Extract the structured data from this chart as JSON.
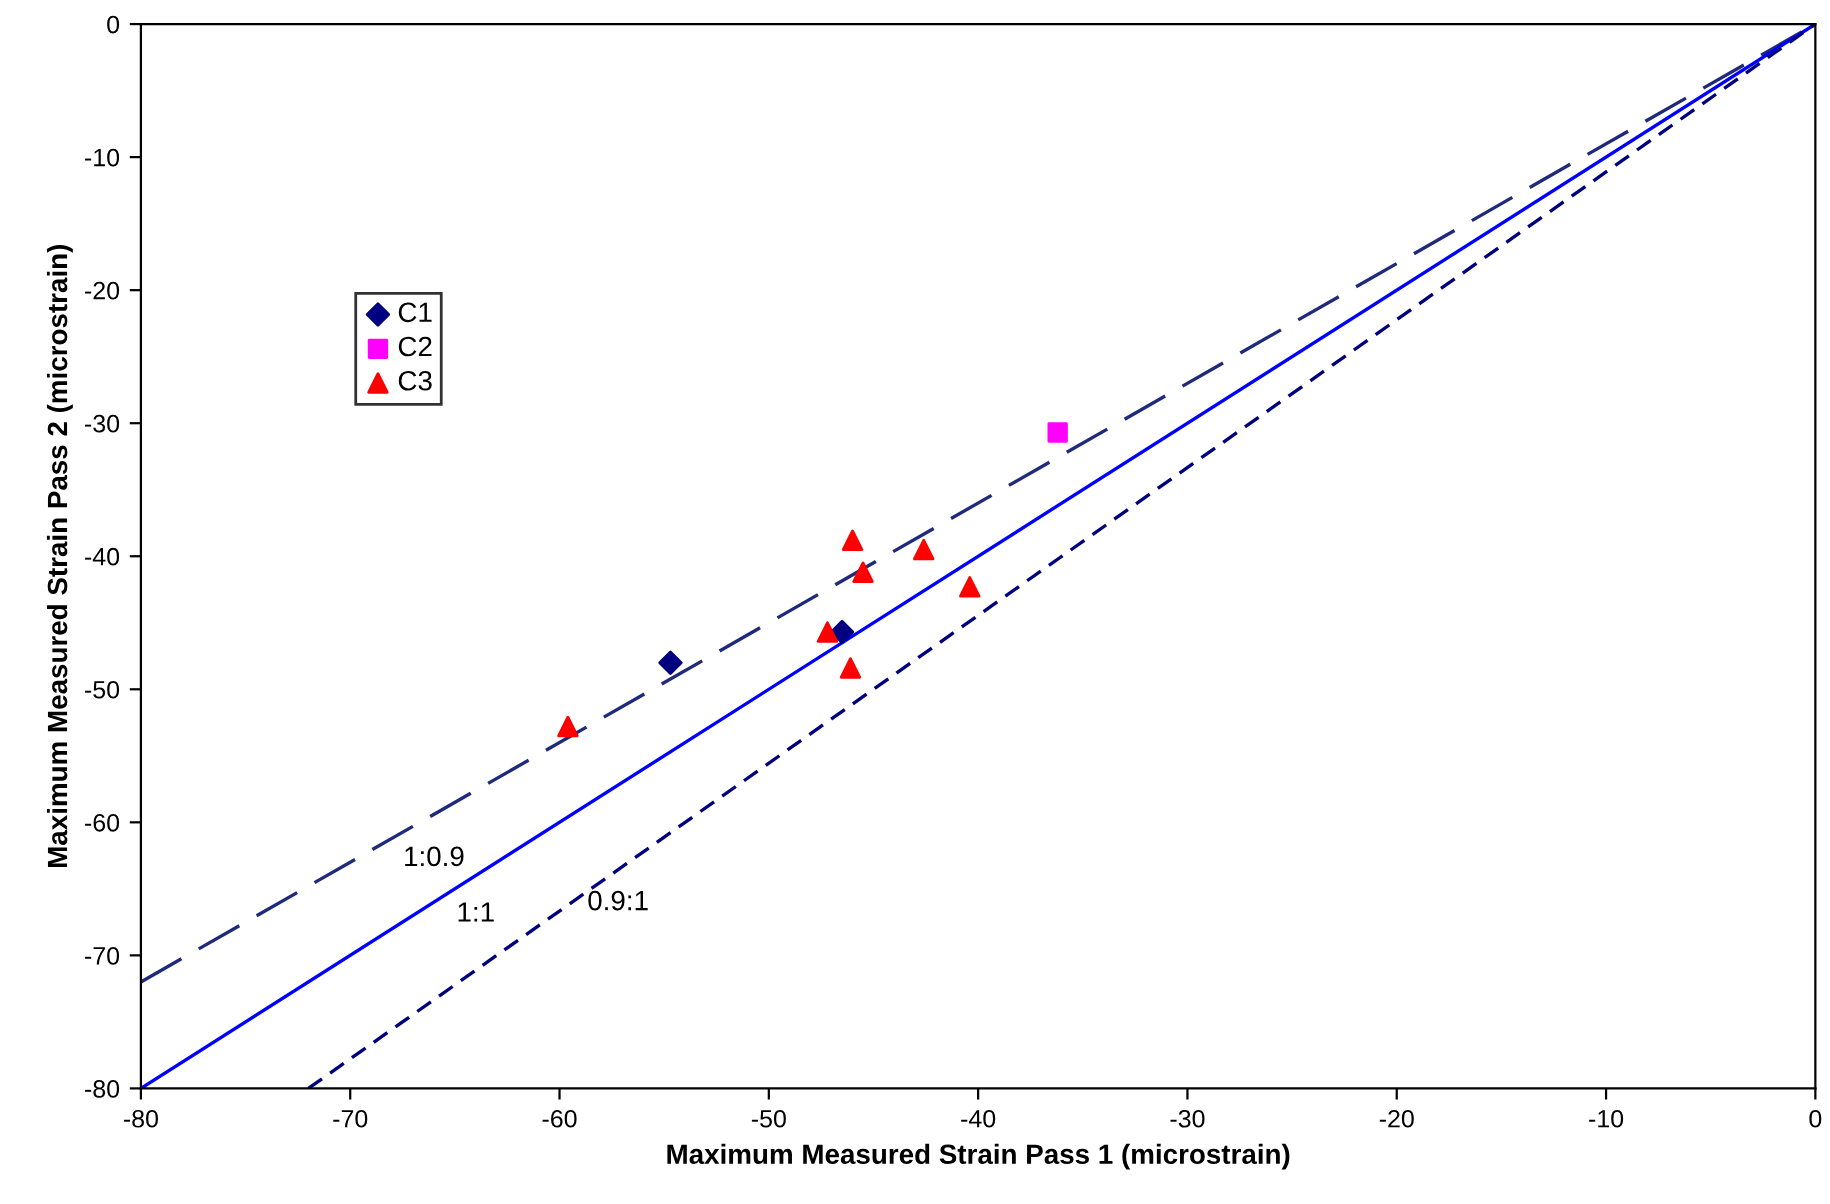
{
  "chart_data": {
    "type": "scatter",
    "xlabel": "Maximum Measured Strain Pass 1 (microstrain)",
    "ylabel": "Maximum Measured Strain Pass 2 (microstrain)",
    "xlim": [
      -80,
      0
    ],
    "xticks": [
      -80,
      -70,
      -60,
      -50,
      -40,
      -30,
      -20,
      -10,
      0
    ],
    "ylim": [
      -80,
      0
    ],
    "yticks": [
      -80,
      -70,
      -60,
      -50,
      -40,
      -30,
      -20,
      -10,
      0
    ],
    "grid": false,
    "legend": "top left",
    "series": [
      {
        "name": "1:0.9",
        "type": "line",
        "color": "#1f2a7a",
        "line_style": "dashed",
        "marker": "none",
        "x": [
          -80,
          0
        ],
        "values": [
          -72,
          0
        ]
      },
      {
        "name": "1:1",
        "type": "line",
        "color": "#0000ff",
        "line_style": "solid",
        "marker": "none",
        "x": [
          -80,
          0
        ],
        "values": [
          -80,
          0
        ]
      },
      {
        "name": "0.9:1",
        "type": "line",
        "color": "#00007f",
        "line_style": "dotted",
        "marker": "none",
        "x": [
          -72,
          0
        ],
        "values": [
          -80,
          0
        ]
      },
      {
        "name": "C1",
        "color": "#000080",
        "marker": "diamond",
        "x": [
          -54.7,
          -46.5
        ],
        "values": [
          -48.0,
          -45.7
        ]
      },
      {
        "name": "C2",
        "color": "#ff00ff",
        "marker": "square",
        "x": [
          -36.2
        ],
        "values": [
          -30.7
        ]
      },
      {
        "name": "C3",
        "color": "#ff0000",
        "marker": "triangle",
        "x": [
          -59.6,
          -47.2,
          -46.0,
          -45.5,
          -46.1,
          -42.6,
          -40.4
        ],
        "values": [
          -52.8,
          -45.7,
          -38.8,
          -41.2,
          -48.4,
          -39.5,
          -42.3
        ]
      }
    ]
  }
}
